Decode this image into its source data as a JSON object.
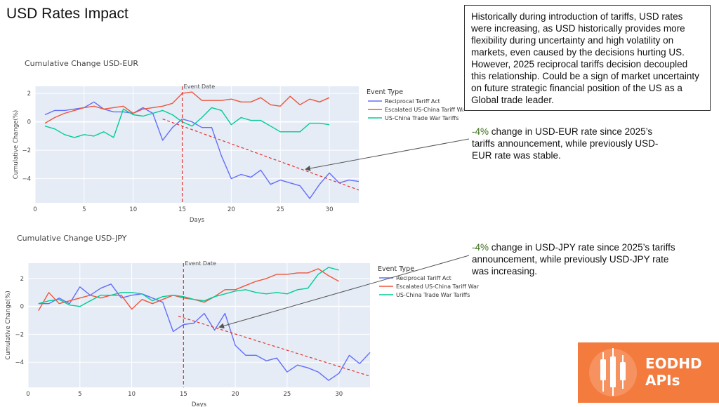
{
  "page": {
    "title": "USD Rates Impact",
    "note": "Historically during introduction of tariffs, USD rates were increasing, as USD historically provides more flexibility during uncertainty and high volatility on markets, even caused by the decisions hurting US. However, 2025 reciprocal tariffs decision decoupled this relationship. Could be a sign of market uncertainty on future strategic financial position of the US as a Global trade leader.",
    "annotation_eur": {
      "pct": "-4%",
      "rest": " change in USD-EUR rate since 2025’s tariffs announcement, while previously USD-EUR rate was stable."
    },
    "annotation_jpy": {
      "pct": "-4%",
      "rest": " change in USD-JPY rate since 2025’s tariffs announcement, while previously USD-JPY rate was increasing."
    },
    "logo": {
      "line1": "EODHD",
      "line2": "APIs",
      "color": "#f47b3e"
    }
  },
  "chart_data": [
    {
      "type": "line",
      "title": "Cumulative Change USD-EUR",
      "xlabel": "Days",
      "ylabel": "Cumulative Change(%)",
      "xlim": [
        0,
        33
      ],
      "ylim": [
        -5.7,
        2.5
      ],
      "xticks": [
        0,
        5,
        10,
        15,
        20,
        25,
        30
      ],
      "yticks": [
        -4,
        -2,
        0,
        2
      ],
      "legend_title": "Event Type",
      "legend_position": "right",
      "grid": true,
      "background": "#e5ecf6",
      "event": {
        "x": 15,
        "label": "Event Date"
      },
      "trend": {
        "x": [
          13,
          33
        ],
        "y": [
          0.2,
          -4.8
        ]
      },
      "series": [
        {
          "name": "Reciprocal Tariff Act",
          "color": "#636efa",
          "x": [
            1,
            2,
            3,
            4,
            5,
            6,
            7,
            8,
            9,
            10,
            11,
            12,
            13,
            14,
            15,
            16,
            17,
            18,
            19,
            20,
            21,
            22,
            23,
            24,
            25,
            26,
            27,
            28,
            29,
            30,
            31,
            32,
            33
          ],
          "y": [
            0.5,
            0.8,
            0.8,
            0.9,
            1.0,
            1.4,
            0.9,
            0.7,
            0.7,
            0.6,
            1.0,
            0.6,
            -1.3,
            -0.4,
            0.2,
            0.0,
            -0.4,
            -0.4,
            -2.4,
            -4.0,
            -3.7,
            -3.9,
            -3.4,
            -4.4,
            -4.1,
            -4.3,
            -4.5,
            -5.4,
            -4.4,
            -3.6,
            -4.3,
            -4.1,
            -4.2
          ]
        },
        {
          "name": "Escalated US-China Tariff War",
          "color": "#ef553b",
          "x": [
            1,
            2,
            3,
            4,
            5,
            6,
            7,
            8,
            9,
            10,
            11,
            12,
            13,
            14,
            15,
            16,
            17,
            18,
            19,
            20,
            21,
            22,
            23,
            24,
            25,
            26,
            27,
            28,
            29,
            30
          ],
          "y": [
            -0.1,
            0.3,
            0.6,
            0.8,
            1.0,
            1.1,
            0.9,
            1.0,
            1.1,
            0.6,
            0.9,
            1.0,
            1.1,
            1.3,
            2.0,
            2.1,
            1.5,
            1.5,
            1.5,
            1.6,
            1.4,
            1.4,
            1.7,
            1.2,
            1.1,
            1.8,
            1.2,
            1.6,
            1.4,
            1.7
          ]
        },
        {
          "name": "US-China Trade War Tariffs",
          "color": "#00cc96",
          "x": [
            1,
            2,
            3,
            4,
            5,
            6,
            7,
            8,
            9,
            10,
            11,
            12,
            13,
            14,
            15,
            16,
            17,
            18,
            19,
            20,
            21,
            22,
            23,
            24,
            25,
            26,
            27,
            28,
            29,
            30
          ],
          "y": [
            -0.3,
            -0.5,
            -0.9,
            -1.1,
            -0.9,
            -1.0,
            -0.7,
            -1.1,
            0.9,
            0.5,
            0.4,
            0.6,
            0.8,
            0.5,
            0.0,
            -0.3,
            0.3,
            1.0,
            0.8,
            -0.2,
            0.3,
            0.1,
            0.1,
            -0.3,
            -0.7,
            -0.7,
            -0.7,
            -0.1,
            -0.1,
            -0.2
          ]
        }
      ]
    },
    {
      "type": "line",
      "title": "Cumulative Change USD-JPY",
      "xlabel": "Days",
      "ylabel": "Cumulative Change(%)",
      "xlim": [
        0,
        33
      ],
      "ylim": [
        -5.8,
        3.1
      ],
      "xticks": [
        0,
        5,
        10,
        15,
        20,
        25,
        30
      ],
      "yticks": [
        -4,
        -2,
        0,
        2
      ],
      "legend_title": "Event Type",
      "legend_position": "right",
      "grid": true,
      "background": "#e5ecf6",
      "event": {
        "x": 15,
        "label": "Event Date"
      },
      "trend": {
        "x": [
          14.5,
          33
        ],
        "y": [
          -0.7,
          -5.0
        ]
      },
      "series": [
        {
          "name": "Reciprocal Tariff Act",
          "color": "#636efa",
          "x": [
            1,
            2,
            3,
            4,
            5,
            6,
            7,
            8,
            9,
            10,
            11,
            12,
            13,
            14,
            15,
            16,
            17,
            18,
            19,
            20,
            21,
            22,
            23,
            24,
            25,
            26,
            27,
            28,
            29,
            30,
            31,
            32,
            33
          ],
          "y": [
            0.2,
            0.2,
            0.6,
            0.2,
            1.4,
            0.8,
            1.3,
            1.6,
            0.6,
            0.8,
            0.9,
            0.6,
            0.3,
            -1.8,
            -1.3,
            -1.2,
            -0.5,
            -1.7,
            -0.5,
            -2.8,
            -3.5,
            -3.5,
            -3.9,
            -3.7,
            -4.7,
            -4.2,
            -4.4,
            -4.7,
            -5.3,
            -4.8,
            -3.5,
            -4.1,
            -3.3
          ]
        },
        {
          "name": "Escalated US-China Tariff War",
          "color": "#ef553b",
          "x": [
            1,
            2,
            3,
            4,
            5,
            6,
            7,
            8,
            9,
            10,
            11,
            12,
            13,
            14,
            15,
            16,
            17,
            18,
            19,
            20,
            21,
            22,
            23,
            24,
            25,
            26,
            27,
            28,
            29,
            30
          ],
          "y": [
            -0.3,
            1.0,
            0.2,
            0.4,
            0.6,
            0.8,
            0.6,
            0.8,
            0.8,
            -0.2,
            0.5,
            0.2,
            0.5,
            0.8,
            0.6,
            0.5,
            0.3,
            0.7,
            1.2,
            1.2,
            1.5,
            1.8,
            2.0,
            2.3,
            2.3,
            2.4,
            2.4,
            2.7,
            2.2,
            1.8
          ]
        },
        {
          "name": "US-China Trade War Tariffs",
          "color": "#00cc96",
          "x": [
            1,
            2,
            3,
            4,
            5,
            6,
            7,
            8,
            9,
            10,
            11,
            12,
            13,
            14,
            15,
            16,
            17,
            18,
            19,
            20,
            21,
            22,
            23,
            24,
            25,
            26,
            27,
            28,
            29,
            30
          ],
          "y": [
            0.2,
            0.4,
            0.5,
            0.1,
            0.0,
            0.4,
            0.8,
            0.8,
            1.0,
            1.0,
            0.9,
            0.4,
            0.7,
            0.8,
            0.7,
            0.5,
            0.4,
            0.7,
            0.9,
            1.1,
            1.2,
            1.0,
            0.9,
            1.0,
            0.9,
            1.2,
            1.3,
            2.3,
            2.8,
            2.6
          ]
        }
      ]
    }
  ]
}
